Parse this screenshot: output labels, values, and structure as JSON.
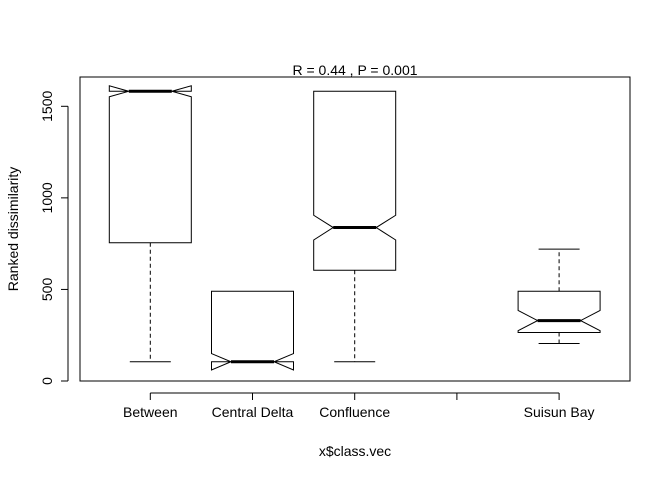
{
  "chart_data": {
    "type": "boxplot",
    "title": "R =  0.44 ,  P =  0.001",
    "xlabel": "x$class.vec",
    "ylabel": "Ranked dissimilarity",
    "categories": [
      "Between",
      "Central Delta",
      "Confluence",
      "",
      "Suisun Bay"
    ],
    "ylim": [
      0,
      1660
    ],
    "yticks": [
      0,
      500,
      1000,
      1500
    ],
    "yticklabels": [
      "0",
      "500",
      "1000",
      "1500"
    ],
    "grid": false,
    "legend": "none",
    "boxes": [
      {
        "category": "Between",
        "whisker_low": 105,
        "q1": 755,
        "median": 1582,
        "q3": 1582,
        "whisker_high": 1582,
        "notch_low": 1552,
        "notch_high": 1612
      },
      {
        "category": "Central Delta",
        "whisker_low": 105,
        "q1": 105,
        "median": 105,
        "q3": 490,
        "whisker_high": 490,
        "notch_low": 60,
        "notch_high": 150
      },
      {
        "category": "Confluence",
        "whisker_low": 105,
        "q1": 605,
        "median": 838,
        "q3": 1582,
        "whisker_high": 1582,
        "notch_low": 770,
        "notch_high": 905
      },
      {
        "category": "Suisun Bay",
        "whisker_low": 205,
        "q1": 265,
        "median": 330,
        "q3": 490,
        "whisker_high": 720,
        "notch_low": 275,
        "notch_high": 385
      }
    ]
  }
}
